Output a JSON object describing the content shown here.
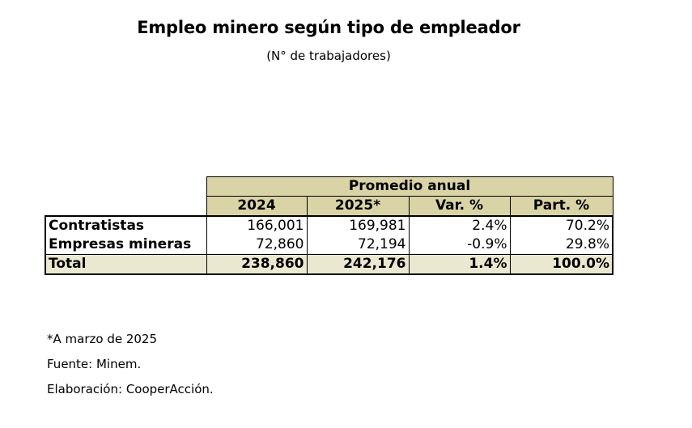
{
  "title": "Empleo minero según tipo de empleador",
  "subtitle": "(N° de trabajadores)",
  "table": {
    "group_header": "Promedio anual",
    "columns": [
      "2024",
      "2025*",
      "Var. %",
      "Part. %"
    ],
    "rows": [
      {
        "label": "Contratistas",
        "values": [
          "166,001",
          "169,981",
          "2.4%",
          "70.2%"
        ]
      },
      {
        "label": "Empresas mineras",
        "values": [
          "72,860",
          "72,194",
          "-0.9%",
          "29.8%"
        ]
      },
      {
        "label": "Total",
        "values": [
          "238,860",
          "242,176",
          "1.4%",
          "100.0%"
        ]
      }
    ]
  },
  "notes": [
    "*A marzo de 2025",
    "Fuente: Minem.",
    "Elaboración: CooperAcción."
  ],
  "colors": {
    "header_fill": "#d9d3a6",
    "total_fill": "#ebe8d2"
  }
}
